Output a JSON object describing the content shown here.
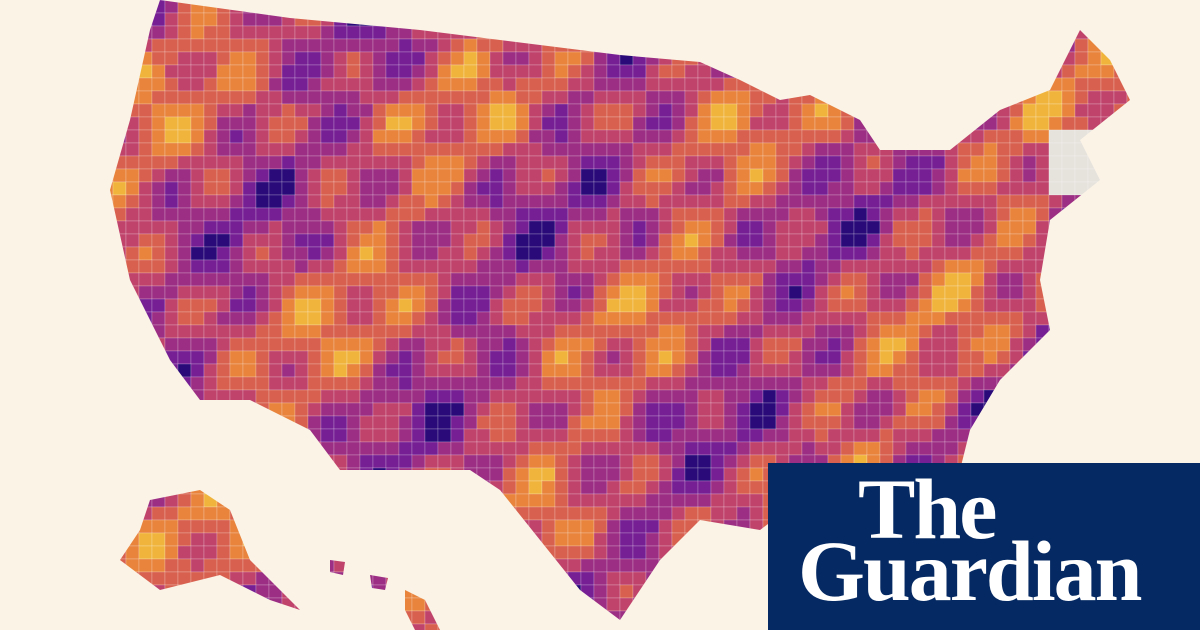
{
  "logo": {
    "line1": "The",
    "line2": "Guardian"
  }
}
